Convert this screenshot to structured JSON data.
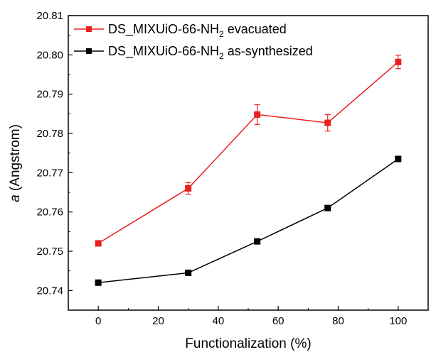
{
  "chart_data": {
    "type": "line",
    "xlabel": "Functionalization (%)",
    "ylabel": {
      "italic": "a",
      "rest": " (Angstrom)"
    },
    "xlim": [
      -10,
      110
    ],
    "ylim": [
      20.735,
      20.81
    ],
    "xticks": [
      0,
      20,
      40,
      60,
      80,
      100
    ],
    "yticks": [
      "20.74",
      "20.75",
      "20.76",
      "20.77",
      "20.78",
      "20.79",
      "20.80",
      "20.81"
    ],
    "grid": false,
    "legend_position": "top-left",
    "series": [
      {
        "name": {
          "base": "DS_MIXUiO-66-NH",
          "sub": "2",
          "suffix": " evacuated"
        },
        "color": "#e8201f",
        "marker": "square",
        "x": [
          0,
          30,
          53,
          76.5,
          100
        ],
        "y": [
          20.752,
          20.766,
          20.7848,
          20.7827,
          20.7982
        ],
        "err": [
          0,
          0.0015,
          0.0025,
          0.0021,
          0.0017
        ]
      },
      {
        "name": {
          "base": "DS_MIXUiO-66-NH",
          "sub": "2",
          "suffix": " as-synthesized"
        },
        "color": "#000000",
        "marker": "square",
        "x": [
          0,
          30,
          53,
          76.5,
          100
        ],
        "y": [
          20.742,
          20.7445,
          20.7525,
          20.761,
          20.7735
        ],
        "err": [
          0,
          0,
          0,
          0,
          0
        ]
      }
    ]
  }
}
